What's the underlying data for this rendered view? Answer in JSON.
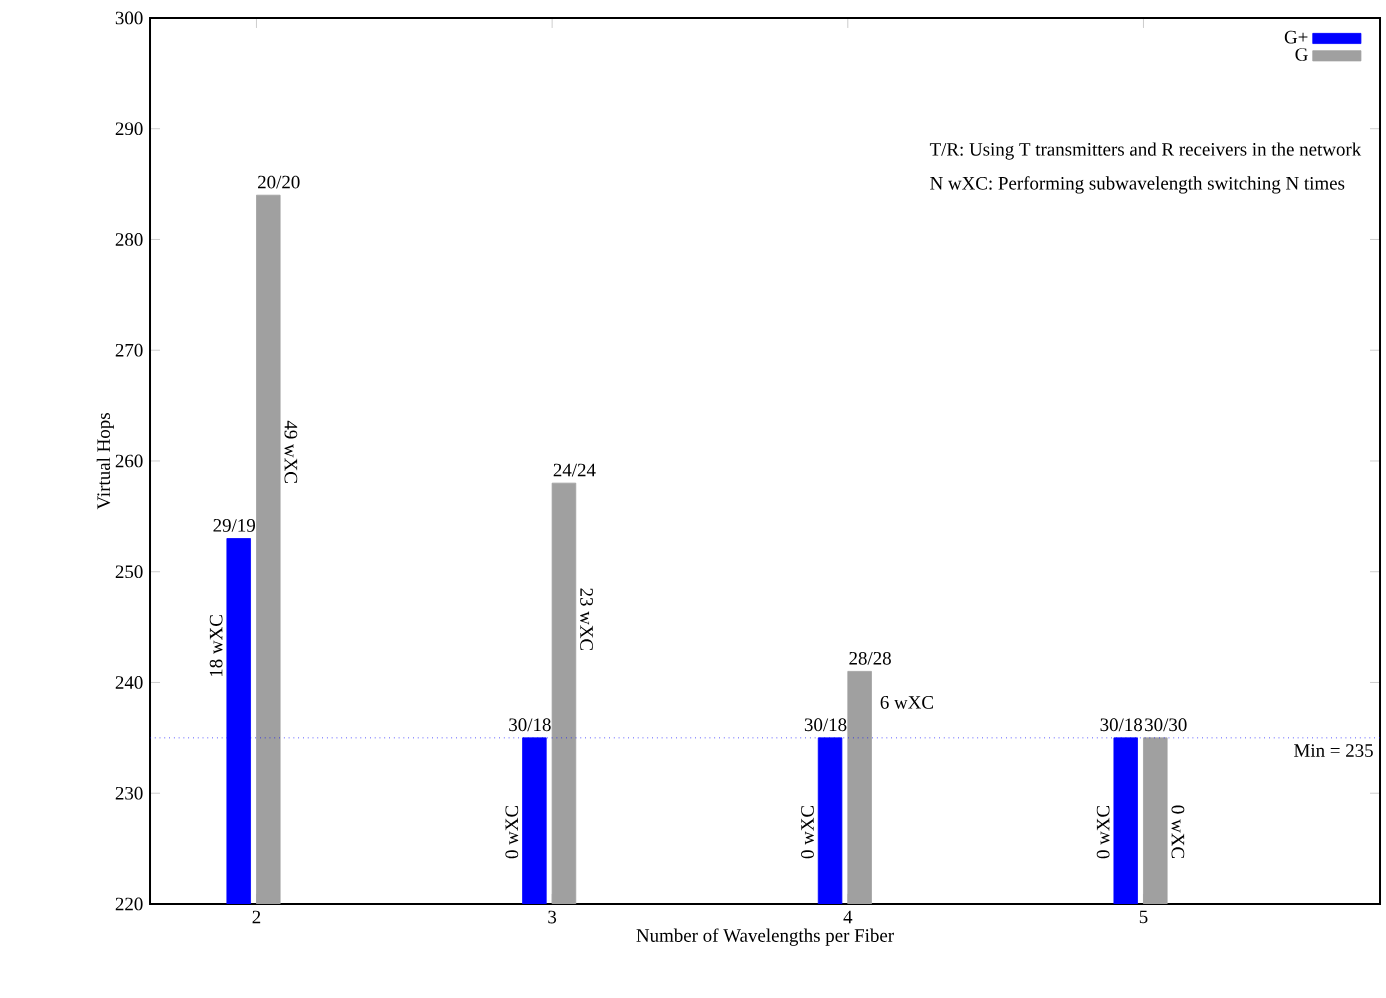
{
  "chart_data": {
    "type": "bar",
    "xlabel": "Number of Wavelengths per Fiber",
    "ylabel": "Virtual Hops",
    "categories": [
      "2",
      "3",
      "4",
      "5"
    ],
    "series": [
      {
        "name": "G+",
        "color": "#0000ff",
        "values": [
          253,
          235,
          235,
          235
        ],
        "value_labels": [
          "29/19",
          "30/18",
          "30/18",
          "30/18"
        ]
      },
      {
        "name": "G",
        "color": "#a0a0a0",
        "values": [
          284,
          258,
          241,
          235
        ],
        "value_labels": [
          "20/20",
          "24/24",
          "28/28",
          "30/30"
        ]
      }
    ],
    "ylim": [
      220,
      300
    ],
    "yticks": [
      220,
      230,
      240,
      250,
      260,
      270,
      280,
      290,
      300
    ],
    "grid": false,
    "legend": "top right",
    "ref_lines": [
      {
        "axis": "y",
        "value": 235,
        "label": "Min = 235",
        "color": "#0000ff",
        "line_style": "dotted"
      }
    ],
    "annotations": [
      "T/R: Using T transmitters and R receivers in the network",
      "N wXC: Performing subwavelength switching N times",
      {
        "text": "18 wXC",
        "x": "2",
        "y": 243.3
      },
      {
        "text": "49 wXC",
        "x": "2",
        "y": 260.8
      },
      {
        "text": "0 wXC",
        "x": "3",
        "y": 226.5
      },
      {
        "text": "23 wXC",
        "x": "3",
        "y": 245.7
      },
      {
        "text": "0 wXC",
        "x": "4",
        "y": 226.5
      },
      {
        "text": "6 wXC",
        "x": "4",
        "y": 238.2
      },
      {
        "text": "0 wXC",
        "x": "5",
        "y": 226.5
      },
      {
        "text": "0 wXC",
        "x": "5",
        "y": 226.5
      }
    ]
  }
}
